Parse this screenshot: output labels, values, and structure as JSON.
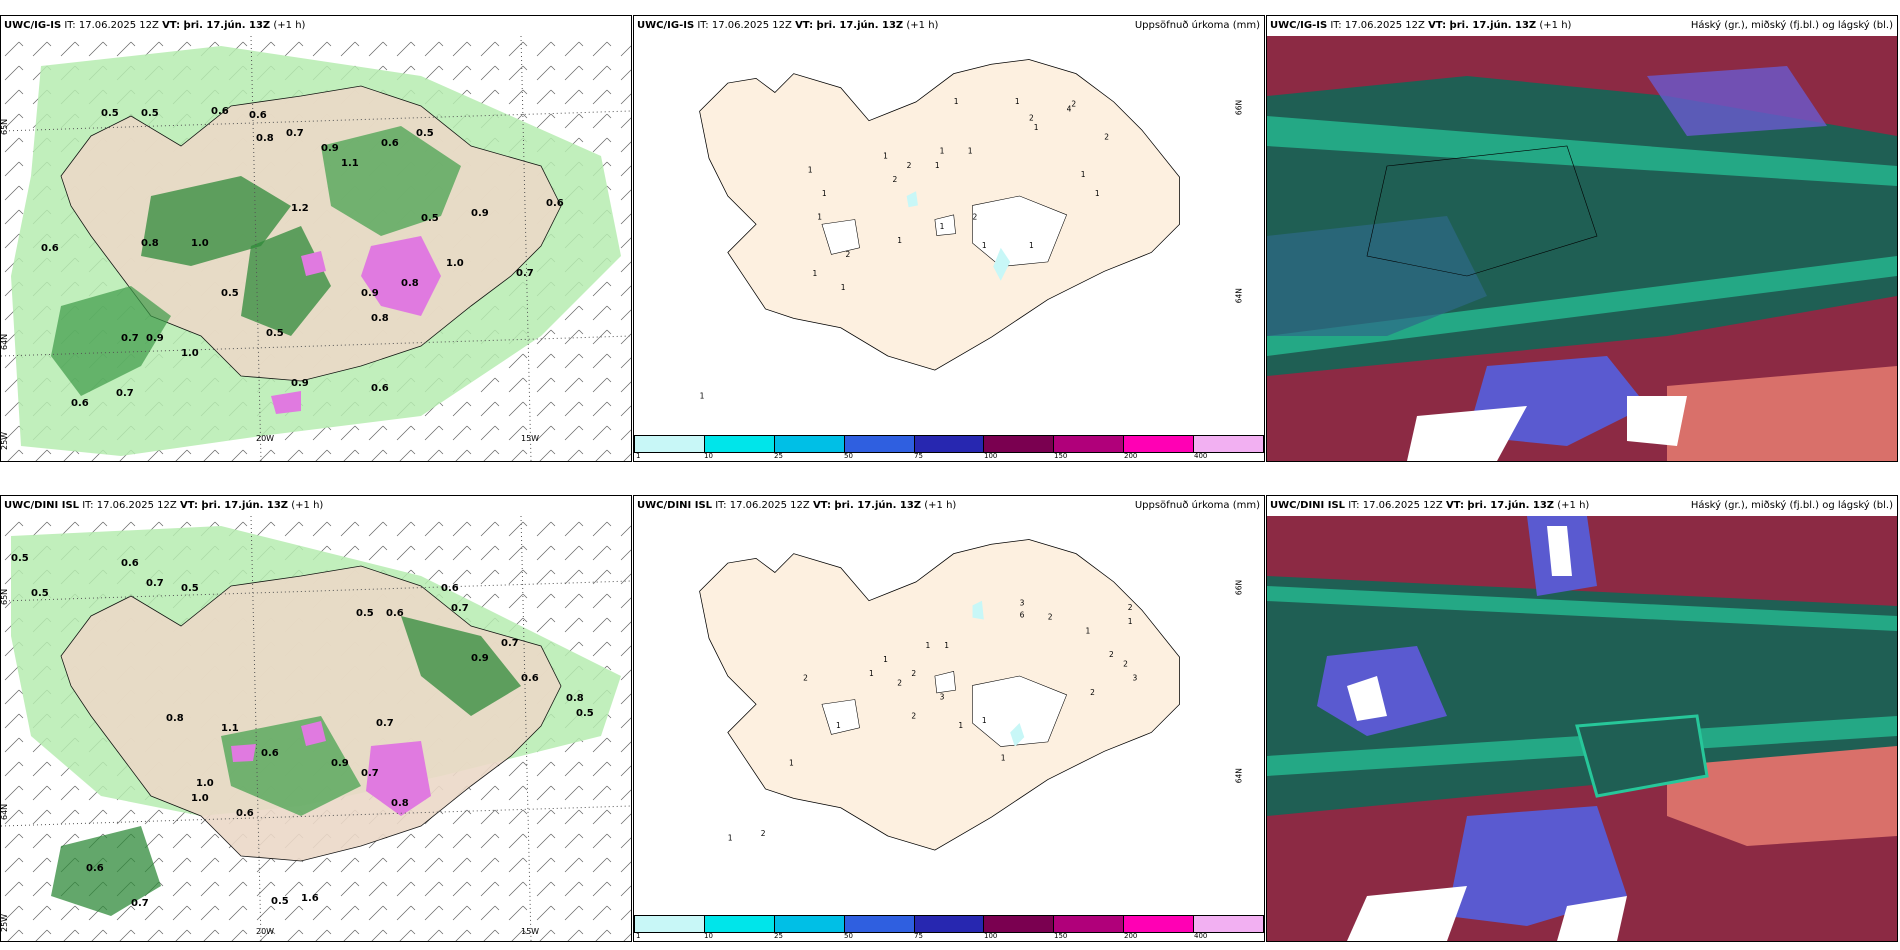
{
  "panels": [
    {
      "model": "UWC/IG-IS",
      "it": "IT: 17.06.2025 12Z",
      "vt": "VT: þri. 17.jún. 13Z",
      "lead": "(+1 h)",
      "right": ""
    },
    {
      "model": "UWC/IG-IS",
      "it": "IT: 17.06.2025 12Z",
      "vt": "VT: þri. 17.jún. 13Z",
      "lead": "(+1 h)",
      "right": "Uppsöfnuð úrkoma (mm)"
    },
    {
      "model": "UWC/IG-IS",
      "it": "IT: 17.06.2025 12Z",
      "vt": "VT: þri. 17.jún. 13Z",
      "lead": "(+1 h)",
      "right": "Háský (gr.), miðský (fj.bl.) og lágský (bl.)"
    },
    {
      "model": "UWC/DINI ISL",
      "it": "IT: 17.06.2025 12Z",
      "vt": "VT: þri. 17.jún. 13Z",
      "lead": "(+1 h)",
      "right": ""
    },
    {
      "model": "UWC/DINI ISL",
      "it": "IT: 17.06.2025 12Z",
      "vt": "VT: þri. 17.jún. 13Z",
      "lead": "(+1 h)",
      "right": "Uppsöfnuð úrkoma (mm)"
    },
    {
      "model": "UWC/DINI ISL",
      "it": "IT: 17.06.2025 12Z",
      "vt": "VT: þri. 17.jún. 13Z",
      "lead": "(+1 h)",
      "right": "Háský (gr.), miðský (fj.bl.) og lágský (bl.)"
    }
  ],
  "axes": {
    "lat1": "65N",
    "lat2": "64N",
    "lat3": "25W",
    "lon1": "20W",
    "lon2": "15W",
    "lat_right1": "66N",
    "lat_right2": "64N"
  },
  "colorbar": {
    "colors": [
      "#c8f7f7",
      "#00e5ea",
      "#00bfe6",
      "#2f5fe0",
      "#2727b0",
      "#7a0050",
      "#b0007a",
      "#ff00b4",
      "#f2b0f2"
    ],
    "labels": [
      "1",
      "10",
      "25",
      "50",
      "75",
      "100",
      "150",
      "200",
      "400"
    ]
  },
  "precip_top": [
    "1",
    "2",
    "1",
    "2",
    "2",
    "1",
    "1",
    "1",
    "1",
    "1",
    "4",
    "2",
    "2",
    "1",
    "1",
    "1",
    "1",
    "2",
    "1",
    "1",
    "1",
    "1",
    "1",
    "1",
    "2",
    "1",
    "1"
  ],
  "precip_bot": [
    "3",
    "2",
    "6",
    "2",
    "1",
    "1",
    "1",
    "2",
    "3",
    "2",
    "2",
    "2",
    "2",
    "1",
    "1",
    "1",
    "2",
    "1",
    "1",
    "1",
    "3",
    "2",
    "1",
    "1",
    "1",
    "2"
  ],
  "wind_values_top": [
    "0.5",
    "0.5",
    "0.6",
    "0.6",
    "0.7",
    "0.6",
    "0.5",
    "0.9",
    "0.8",
    "1.2",
    "1.1",
    "0.6",
    "0.8",
    "1.0",
    "0.7",
    "0.9",
    "0.7",
    "0.6",
    "0.5",
    "0.9",
    "1.0",
    "0.6",
    "0.5",
    "0.6",
    "0.7",
    "0.9",
    "1.0",
    "0.8",
    "0.9",
    "0.5",
    "0.8"
  ],
  "wind_values_bot": [
    "0.5",
    "0.5",
    "0.6",
    "0.7",
    "0.5",
    "0.6",
    "0.7",
    "0.5",
    "0.6",
    "0.7",
    "0.8",
    "1.0",
    "0.9",
    "0.6",
    "0.5",
    "0.8",
    "1.1",
    "0.7",
    "0.6",
    "0.7",
    "0.9",
    "1.0",
    "0.6",
    "0.8",
    "0.6",
    "0.7",
    "1.6",
    "0.5"
  ]
}
